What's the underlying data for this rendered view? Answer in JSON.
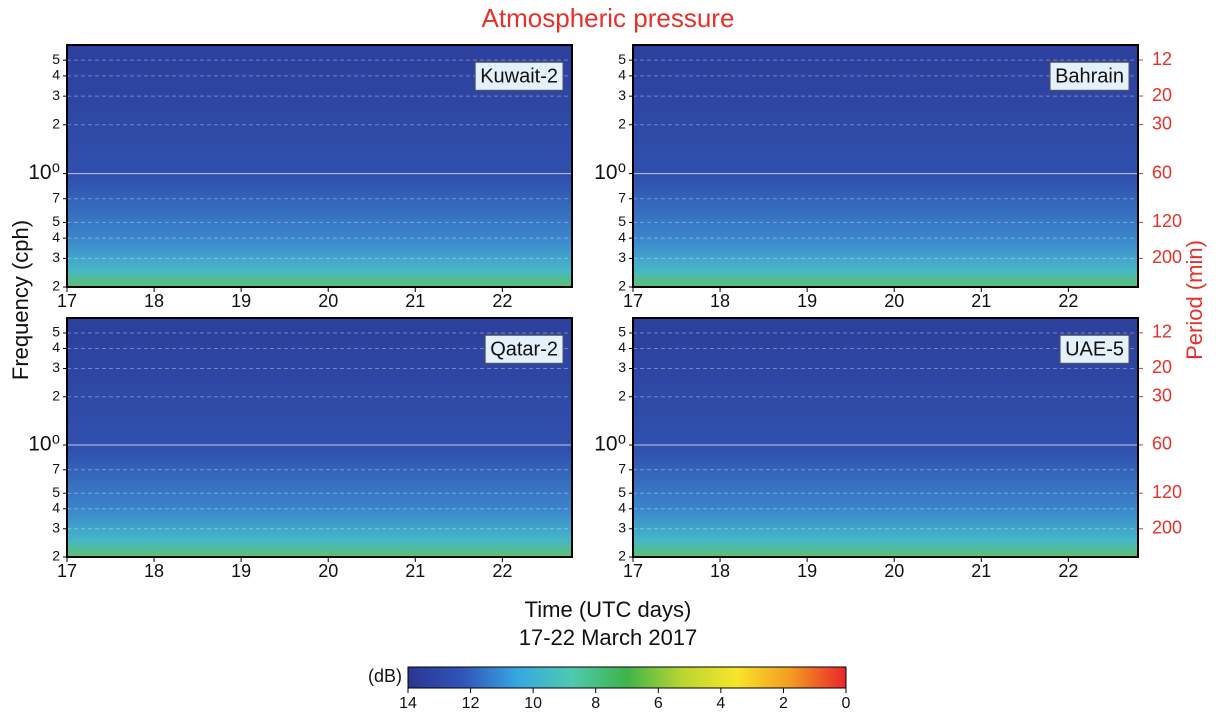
{
  "title": "Atmospheric pressure",
  "ylabel": "Frequency  (cph)",
  "y2label": "Period (min)",
  "xlabel": "Time (UTC days)",
  "xlabel2": "17-22 March 2017",
  "chart_data": [
    {
      "type": "heatmap",
      "label": "Kuwait-2",
      "xlim": [
        17,
        22.8
      ],
      "xticks": [
        17,
        18,
        19,
        20,
        21,
        22
      ],
      "log_y": true,
      "ylim": [
        0.2,
        6.2
      ],
      "yticks": [
        5,
        4,
        3,
        2,
        {
          "value": 1,
          "label": "10⁰"
        },
        {
          "value": 0.7,
          "label": "7"
        },
        {
          "value": 0.5,
          "label": "5"
        },
        {
          "value": 0.4,
          "label": "4"
        },
        {
          "value": 0.3,
          "label": "3"
        },
        {
          "value": 0.2,
          "label": "2"
        }
      ]
    },
    {
      "type": "heatmap",
      "label": "Bahrain",
      "xlim": [
        17,
        22.8
      ],
      "xticks": [
        17,
        18,
        19,
        20,
        21,
        22
      ],
      "log_y": true,
      "ylim": [
        0.2,
        6.2
      ],
      "yticks": [
        5,
        4,
        3,
        2,
        {
          "value": 1,
          "label": "10⁰"
        },
        {
          "value": 0.7,
          "label": "7"
        },
        {
          "value": 0.5,
          "label": "5"
        },
        {
          "value": 0.4,
          "label": "4"
        },
        {
          "value": 0.3,
          "label": "3"
        },
        {
          "value": 0.2,
          "label": "2"
        }
      ],
      "y2lim": [
        300,
        9.7
      ],
      "y2ticks": [
        12,
        20,
        30,
        60,
        120,
        200
      ]
    },
    {
      "type": "heatmap",
      "label": "Qatar-2",
      "xlim": [
        17,
        22.8
      ],
      "xticks": [
        17,
        18,
        19,
        20,
        21,
        22
      ],
      "log_y": true,
      "ylim": [
        0.2,
        6.2
      ],
      "yticks": [
        5,
        4,
        3,
        2,
        {
          "value": 1,
          "label": "10⁰"
        },
        {
          "value": 0.7,
          "label": "7"
        },
        {
          "value": 0.5,
          "label": "5"
        },
        {
          "value": 0.4,
          "label": "4"
        },
        {
          "value": 0.3,
          "label": "3"
        },
        {
          "value": 0.2,
          "label": "2"
        }
      ]
    },
    {
      "type": "heatmap",
      "label": "UAE-5",
      "xlim": [
        17,
        22.8
      ],
      "xticks": [
        17,
        18,
        19,
        20,
        21,
        22
      ],
      "log_y": true,
      "ylim": [
        0.2,
        6.2
      ],
      "yticks": [
        5,
        4,
        3,
        2,
        {
          "value": 1,
          "label": "10⁰"
        },
        {
          "value": 0.7,
          "label": "7"
        },
        {
          "value": 0.5,
          "label": "5"
        },
        {
          "value": 0.4,
          "label": "4"
        },
        {
          "value": 0.3,
          "label": "3"
        },
        {
          "value": 0.2,
          "label": "2"
        }
      ],
      "y2lim": [
        300,
        9.7
      ],
      "y2ticks": [
        12,
        20,
        30,
        60,
        120,
        200
      ]
    }
  ],
  "colorbar": {
    "label": "(dB)",
    "lim": [
      14,
      0
    ],
    "ticks": [
      14,
      12,
      10,
      8,
      6,
      4,
      2,
      0
    ],
    "colors": [
      "#2b3590",
      "#2f55b8",
      "#37a7e0",
      "#4fc9b0",
      "#3db44a",
      "#b9d532",
      "#f7e52a",
      "#f49a22",
      "#e8262a"
    ]
  }
}
